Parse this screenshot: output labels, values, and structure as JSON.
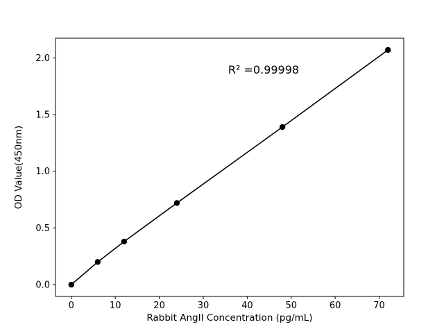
{
  "chart_data": {
    "type": "scatter",
    "title": "",
    "xlabel": "Rabbit AngII Concentration (pg/mL)",
    "ylabel": "OD Value(450nm)",
    "annotation": "R² =0.99998",
    "x": [
      0,
      6,
      12,
      24,
      48,
      72
    ],
    "y": [
      0.0,
      0.2,
      0.38,
      0.72,
      1.39,
      2.07
    ],
    "line_through_points": true,
    "xlim": [
      -3.6,
      75.6
    ],
    "ylim": [
      -0.104,
      2.174
    ],
    "xticks": [
      0,
      10,
      20,
      30,
      40,
      50,
      60,
      70
    ],
    "xtick_labels": [
      "0",
      "10",
      "20",
      "30",
      "40",
      "50",
      "60",
      "70"
    ],
    "yticks": [
      0.0,
      0.5,
      1.0,
      1.5,
      2.0
    ],
    "ytick_labels": [
      "0.0",
      "0.5",
      "1.0",
      "1.5",
      "2.0"
    ],
    "grid": false,
    "legend": "none",
    "marker_color": "#000000",
    "line_color": "#000000",
    "frame_color": "#000000",
    "background": "#ffffff"
  }
}
